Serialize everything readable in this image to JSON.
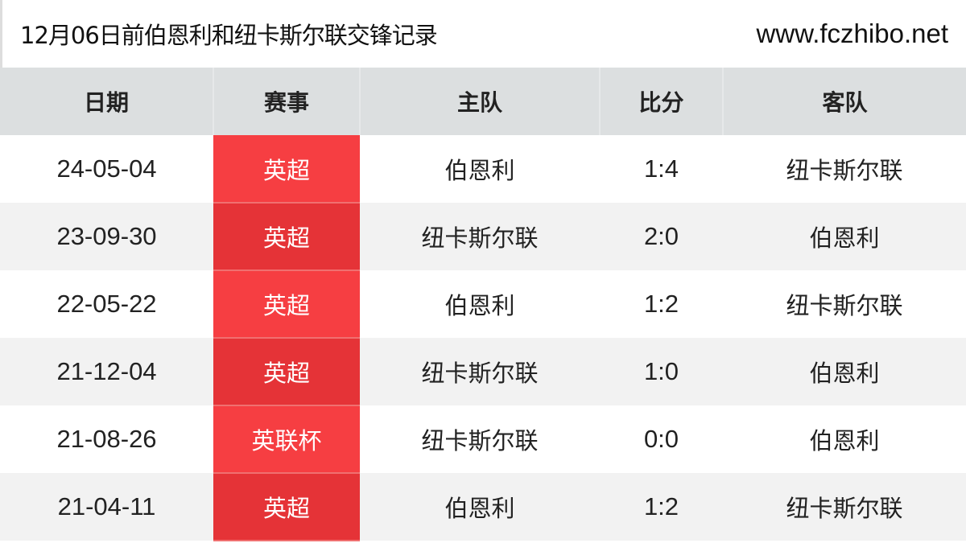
{
  "header": {
    "title": "12月06日前伯恩利和纽卡斯尔联交锋记录",
    "site": "www.fczhibo.net"
  },
  "columns": [
    "日期",
    "赛事",
    "主队",
    "比分",
    "客队"
  ],
  "colors": {
    "competition_red": "#f63e42",
    "competition_red_alt": "#e53337",
    "header_bg": "#dcdfe0"
  },
  "rows": [
    {
      "date": "24-05-04",
      "competition": "英超",
      "home": "伯恩利",
      "score": "1:4",
      "away": "纽卡斯尔联"
    },
    {
      "date": "23-09-30",
      "competition": "英超",
      "home": "纽卡斯尔联",
      "score": "2:0",
      "away": "伯恩利"
    },
    {
      "date": "22-05-22",
      "competition": "英超",
      "home": "伯恩利",
      "score": "1:2",
      "away": "纽卡斯尔联"
    },
    {
      "date": "21-12-04",
      "competition": "英超",
      "home": "纽卡斯尔联",
      "score": "1:0",
      "away": "伯恩利"
    },
    {
      "date": "21-08-26",
      "competition": "英联杯",
      "home": "纽卡斯尔联",
      "score": "0:0",
      "away": "伯恩利"
    },
    {
      "date": "21-04-11",
      "competition": "英超",
      "home": "伯恩利",
      "score": "1:2",
      "away": "纽卡斯尔联"
    }
  ]
}
